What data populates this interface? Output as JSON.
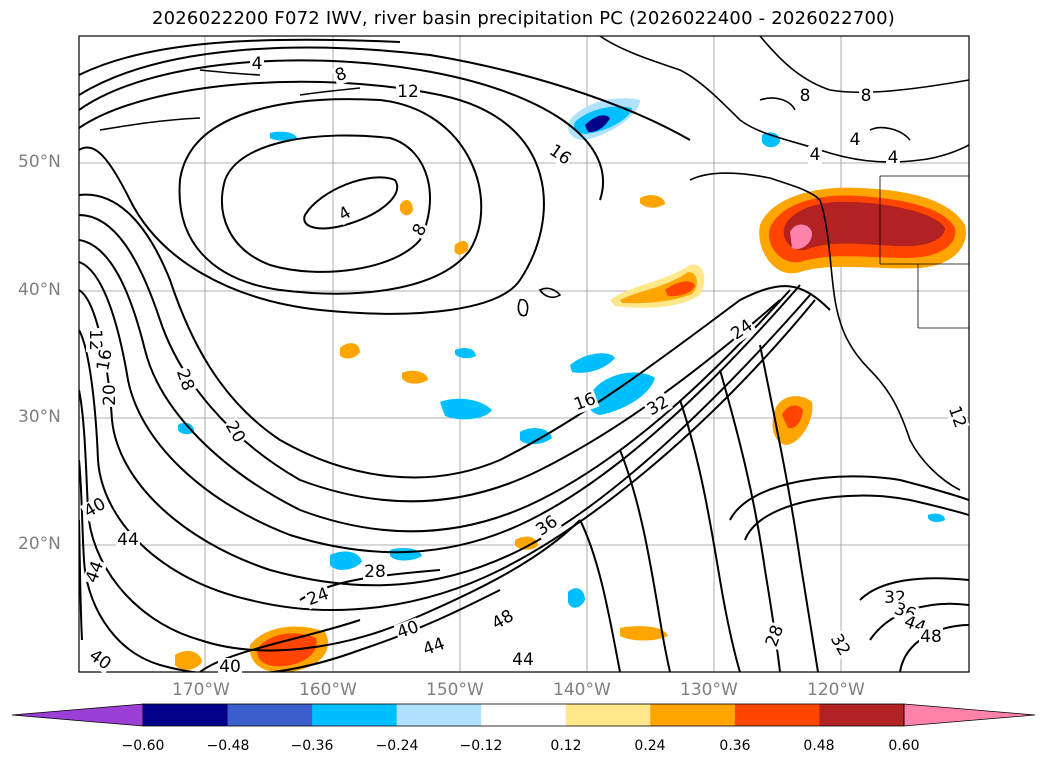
{
  "title": "2026022200 F072 IWV, river basin precipitation PC (2026022400 - 2026022700)",
  "axes": {
    "lat_labels": [
      "50°N",
      "40°N",
      "30°N",
      "20°N"
    ],
    "lon_labels": [
      "170°W",
      "160°W",
      "150°W",
      "140°W",
      "130°W",
      "120°W"
    ]
  },
  "colorbar": {
    "colors": [
      "#9b3fd6",
      "#00008b",
      "#3a5fcd",
      "#00bfff",
      "#b0e2ff",
      "#ffffff",
      "#ffe78a",
      "#ffa500",
      "#ff4500",
      "#b22222",
      "#ff82ab"
    ],
    "tick_labels": [
      "−0.60",
      "−0.48",
      "−0.36",
      "−0.24",
      "−0.12",
      "0.12",
      "0.24",
      "0.36",
      "0.48",
      "0.60"
    ]
  },
  "contour_labels": [
    {
      "text": "4"
    },
    {
      "text": "8"
    },
    {
      "text": "12"
    },
    {
      "text": "16"
    },
    {
      "text": "4"
    },
    {
      "text": "8"
    },
    {
      "text": "8"
    },
    {
      "text": "8"
    },
    {
      "text": "4"
    },
    {
      "text": "4"
    },
    {
      "text": "4"
    },
    {
      "text": "12"
    },
    {
      "text": "16"
    },
    {
      "text": "20"
    },
    {
      "text": "28"
    },
    {
      "text": "20"
    },
    {
      "text": "24"
    },
    {
      "text": "16"
    },
    {
      "text": "32"
    },
    {
      "text": "36"
    },
    {
      "text": "40"
    },
    {
      "text": "44"
    },
    {
      "text": "44"
    },
    {
      "text": "40"
    },
    {
      "text": "28"
    },
    {
      "text": "24"
    },
    {
      "text": "40"
    },
    {
      "text": "44"
    },
    {
      "text": "48"
    },
    {
      "text": "44"
    },
    {
      "text": "40"
    },
    {
      "text": "28"
    },
    {
      "text": "32"
    },
    {
      "text": "12"
    },
    {
      "text": "32"
    },
    {
      "text": "36"
    },
    {
      "text": "44"
    },
    {
      "text": "48"
    }
  ]
}
